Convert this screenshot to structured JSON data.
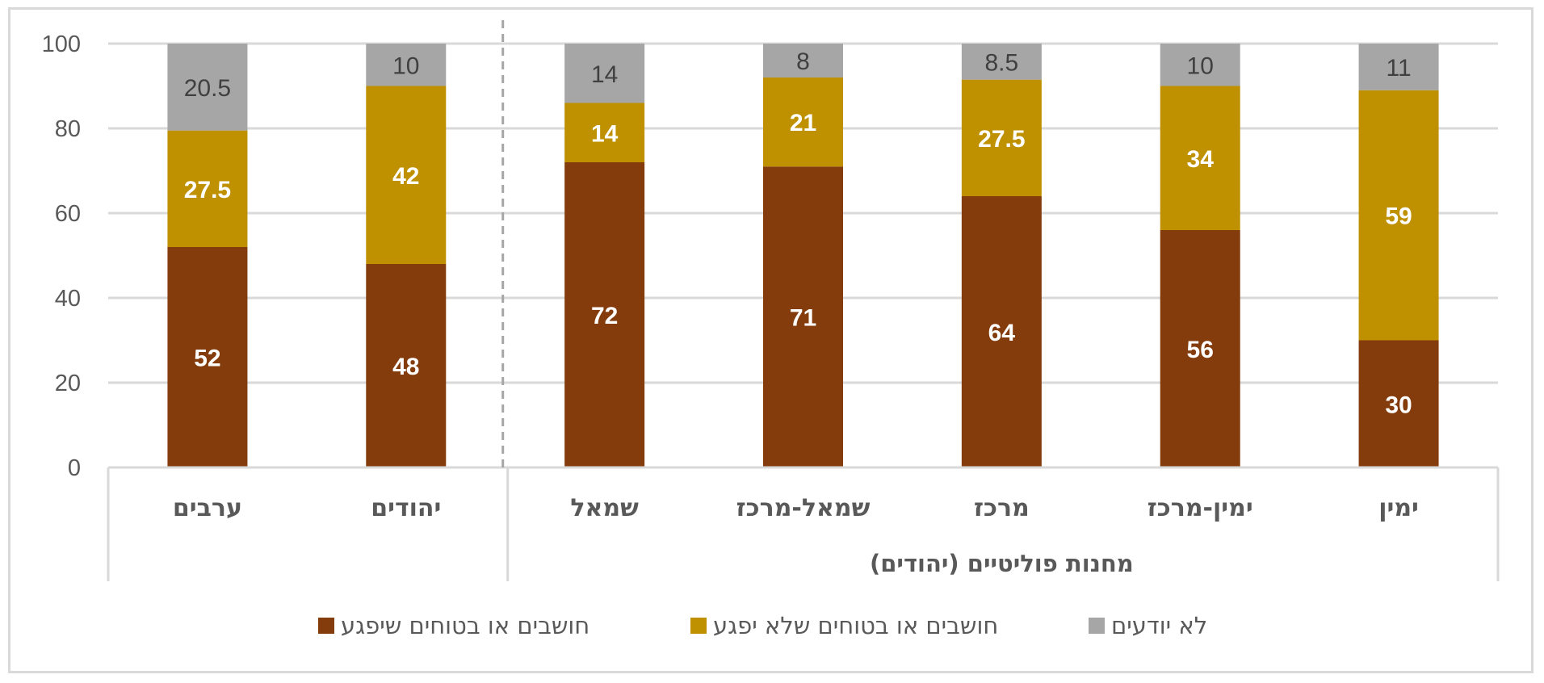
{
  "chart_data": {
    "type": "bar",
    "stacked": true,
    "orientation": "vertical",
    "title": "",
    "xlabel": "",
    "ylabel": "",
    "ylim": [
      0,
      100
    ],
    "yticks": [
      "0",
      "20",
      "40",
      "60",
      "80",
      "100"
    ],
    "grid": true,
    "legend_position": "bottom",
    "categories": [
      "ערבים",
      "יהודים",
      "שמאל",
      "שמאל-מרכז",
      "מרכז",
      "ימין-מרכז",
      "ימין"
    ],
    "category_groups": [
      {
        "label": "",
        "categories": [
          "ערבים",
          "יהודים"
        ]
      },
      {
        "label": "מחנות פוליטיים (יהודים)",
        "categories": [
          "שמאל",
          "שמאל-מרכז",
          "מרכז",
          "ימין-מרכז",
          "ימין"
        ]
      }
    ],
    "series": [
      {
        "name": "חושבים או בטוחים שיפגע",
        "color": "#843c0c",
        "label_style": "light",
        "values": [
          52,
          48,
          72,
          71,
          64,
          56,
          30
        ],
        "labels": [
          "52",
          "48",
          "72",
          "71",
          "64",
          "56",
          "30"
        ]
      },
      {
        "name": "חושבים או בטוחים שלא יפגע",
        "color": "#bf9000",
        "label_style": "light",
        "values": [
          27.5,
          42,
          14,
          21,
          27.5,
          34,
          59
        ],
        "labels": [
          "27.5",
          "42",
          "14",
          "21",
          "27.5",
          "34",
          "59"
        ]
      },
      {
        "name": "לא יודעים",
        "color": "#a6a6a6",
        "label_style": "dark",
        "values": [
          20.5,
          10,
          14,
          8,
          8.5,
          10,
          11
        ],
        "labels": [
          "20.5",
          "10",
          "14",
          "8",
          "8.5",
          "10",
          "11"
        ]
      }
    ],
    "legend_order": [
      0,
      1,
      2
    ],
    "separator_after_category": 1
  },
  "colors": {
    "gridline": "#d9d9d9",
    "text": "#595959",
    "dark_label": "#404040",
    "separator": "#a6a6a6"
  }
}
